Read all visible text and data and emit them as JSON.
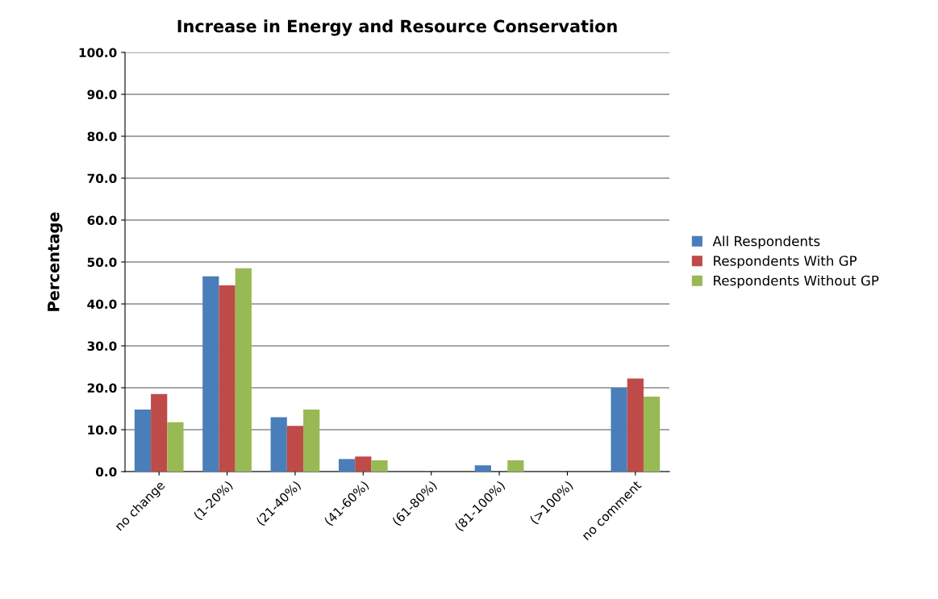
{
  "chart_data": {
    "type": "bar",
    "title": "Increase in Energy and Resource Conservation",
    "ylabel": "Percentage",
    "categories": [
      "no change",
      "(1-20%)",
      "(21-40%)",
      "(41-60%)",
      "(61-80%)",
      "(81-100%)",
      "(>100%)",
      "no comment"
    ],
    "series": [
      {
        "name": "All Respondents",
        "color": "#4a7ebb",
        "values": [
          14.8,
          46.6,
          13.0,
          3.0,
          0,
          1.5,
          0,
          20.0
        ]
      },
      {
        "name": "Respondents With GP",
        "color": "#be4b48",
        "values": [
          18.5,
          44.4,
          10.9,
          3.6,
          0,
          0,
          0,
          22.2
        ]
      },
      {
        "name": "Respondents Without GP",
        "color": "#98b954",
        "values": [
          11.8,
          48.5,
          14.8,
          2.7,
          0,
          2.7,
          0,
          17.9
        ]
      }
    ],
    "ylim": [
      0,
      100
    ],
    "yticks": [
      {
        "value": 0,
        "label": "0.0"
      },
      {
        "value": 10,
        "label": "10.0"
      },
      {
        "value": 20,
        "label": "20.0"
      },
      {
        "value": 30,
        "label": "30.0"
      },
      {
        "value": 40,
        "label": "40.0"
      },
      {
        "value": 50,
        "label": "50.0"
      },
      {
        "value": 60,
        "label": "60.0"
      },
      {
        "value": 70,
        "label": "70.0"
      },
      {
        "value": 80,
        "label": "80.0"
      },
      {
        "value": 90,
        "label": "90.0"
      },
      {
        "value": 100,
        "label": "100.0"
      }
    ],
    "grid": "y",
    "legend": "right"
  }
}
